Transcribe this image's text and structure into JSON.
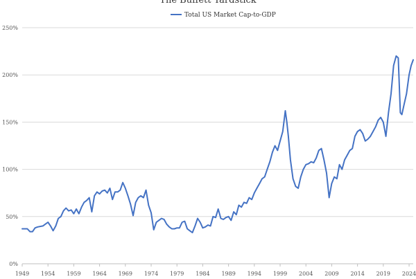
{
  "chart_data": {
    "type": "line",
    "title": "The Buffett Yardstick",
    "xlabel": "",
    "ylabel": "",
    "ylim": [
      0,
      250
    ],
    "y_ticks": [
      "0%",
      "50%",
      "100%",
      "150%",
      "200%",
      "250%"
    ],
    "y_tick_values": [
      0,
      50,
      100,
      150,
      200,
      250
    ],
    "xlim": [
      1949,
      2024.8
    ],
    "x_ticks": [
      "1949",
      "1954",
      "1959",
      "1964",
      "1969",
      "1974",
      "1979",
      "1984",
      "1989",
      "1994",
      "1999",
      "2004",
      "2009",
      "2014",
      "2019",
      "2024"
    ],
    "x_tick_values": [
      1949,
      1954,
      1959,
      1964,
      1969,
      1974,
      1979,
      1984,
      1989,
      1994,
      1999,
      2004,
      2009,
      2014,
      2019,
      2024
    ],
    "grid": "horizontal",
    "legend_position": "top-center",
    "series": [
      {
        "name": "Total US Market Cap-to-GDP",
        "color": "#4472c4",
        "x": [
          1949.0,
          1950.0,
          1950.5,
          1951.0,
          1951.5,
          1952.0,
          1953.0,
          1953.5,
          1954.0,
          1954.5,
          1955.0,
          1955.5,
          1956.0,
          1956.5,
          1957.0,
          1957.5,
          1958.0,
          1958.5,
          1959.0,
          1959.5,
          1960.0,
          1960.5,
          1961.0,
          1961.5,
          1962.0,
          1962.5,
          1963.0,
          1963.5,
          1964.0,
          1964.5,
          1965.0,
          1965.5,
          1966.0,
          1966.5,
          1967.0,
          1967.5,
          1968.0,
          1968.5,
          1969.0,
          1969.5,
          1970.0,
          1970.5,
          1971.0,
          1971.5,
          1972.0,
          1972.5,
          1973.0,
          1973.5,
          1974.0,
          1974.5,
          1975.0,
          1975.5,
          1976.0,
          1976.5,
          1977.0,
          1977.5,
          1978.0,
          1978.5,
          1979.0,
          1979.5,
          1980.0,
          1980.5,
          1981.0,
          1981.5,
          1982.0,
          1982.5,
          1983.0,
          1983.5,
          1984.0,
          1984.5,
          1985.0,
          1985.5,
          1986.0,
          1986.5,
          1987.0,
          1987.5,
          1988.0,
          1988.5,
          1989.0,
          1989.5,
          1990.0,
          1990.5,
          1991.0,
          1991.5,
          1992.0,
          1992.5,
          1993.0,
          1993.5,
          1994.0,
          1994.5,
          1995.0,
          1995.5,
          1996.0,
          1996.5,
          1997.0,
          1997.5,
          1998.0,
          1998.5,
          1999.0,
          1999.5,
          2000.0,
          2000.3,
          2000.6,
          2001.0,
          2001.5,
          2002.0,
          2002.5,
          2003.0,
          2003.5,
          2004.0,
          2004.5,
          2005.0,
          2005.5,
          2006.0,
          2006.5,
          2007.0,
          2007.5,
          2008.0,
          2008.5,
          2009.0,
          2009.5,
          2010.0,
          2010.5,
          2011.0,
          2011.5,
          2012.0,
          2012.5,
          2013.0,
          2013.5,
          2014.0,
          2014.5,
          2015.0,
          2015.5,
          2016.0,
          2016.5,
          2017.0,
          2017.5,
          2018.0,
          2018.5,
          2019.0,
          2019.5,
          2020.0,
          2020.5,
          2021.0,
          2021.5,
          2021.9,
          2022.3,
          2022.6,
          2023.0,
          2023.5,
          2024.0,
          2024.4,
          2024.8
        ],
        "y": [
          37,
          37,
          34,
          34,
          38,
          39,
          40,
          42,
          44,
          40,
          35,
          40,
          48,
          50,
          56,
          59,
          56,
          57,
          53,
          58,
          53,
          60,
          65,
          67,
          70,
          55,
          72,
          76,
          74,
          77,
          78,
          75,
          80,
          68,
          76,
          76,
          78,
          86,
          80,
          72,
          63,
          51,
          65,
          70,
          72,
          70,
          78,
          62,
          54,
          36,
          44,
          46,
          48,
          47,
          42,
          39,
          37,
          37,
          38,
          38,
          44,
          45,
          37,
          35,
          33,
          40,
          48,
          44,
          38,
          39,
          41,
          40,
          50,
          49,
          58,
          48,
          47,
          49,
          50,
          46,
          55,
          52,
          62,
          60,
          65,
          64,
          70,
          68,
          75,
          80,
          85,
          90,
          92,
          100,
          108,
          118,
          125,
          120,
          130,
          140,
          162,
          150,
          135,
          110,
          90,
          82,
          80,
          92,
          100,
          105,
          106,
          108,
          107,
          112,
          120,
          122,
          110,
          96,
          70,
          85,
          92,
          90,
          105,
          100,
          110,
          115,
          120,
          122,
          135,
          140,
          142,
          138,
          130,
          132,
          135,
          140,
          145,
          152,
          155,
          150,
          135,
          160,
          180,
          210,
          220,
          218,
          160,
          158,
          168,
          180,
          200,
          210,
          216
        ]
      }
    ]
  }
}
